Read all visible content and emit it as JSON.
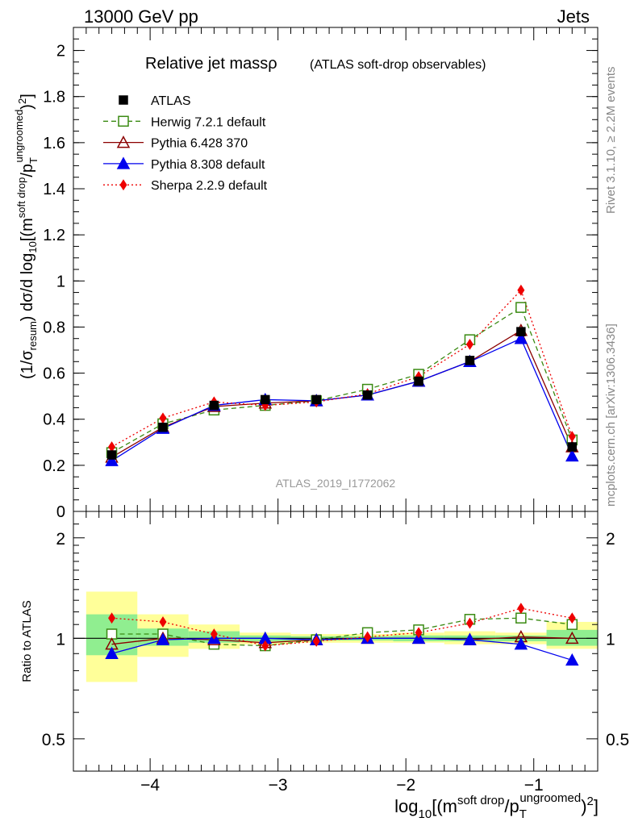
{
  "header": {
    "left": "13000 GeV pp",
    "right": "Jets"
  },
  "side_labels": {
    "top": "Rivet 3.1.10, ≥ 2.2M events",
    "bottom": "mcplots.cern.ch [arXiv:1306.3436]"
  },
  "chart_data": [
    {
      "type": "line",
      "title": "Relative jet massρ",
      "subtitle": "(ATLAS soft-drop observables)",
      "watermark": "ATLAS_2019_I1772062",
      "xlabel": "log₁₀[(m^{soft drop}/p_T^{ungroomed})²]",
      "ylabel": "(1/σ_resum) dσ/d log₁₀[(m^{soft drop}/p_T^{ungroomed})²]",
      "xlim": [
        -4.6,
        -0.5
      ],
      "ylim": [
        0,
        2.1
      ],
      "grid": false,
      "legend_placement": "top-left",
      "x": [
        -4.3,
        -3.9,
        -3.5,
        -3.1,
        -2.7,
        -2.3,
        -1.9,
        -1.5,
        -1.1,
        -0.7
      ],
      "x_edges": [
        -4.5,
        -4.1,
        -3.7,
        -3.3,
        -2.9,
        -2.5,
        -2.1,
        -1.7,
        -1.3,
        -0.9,
        -0.5
      ],
      "series": [
        {
          "name": "ATLAS",
          "key": "atlas",
          "color": "#000000",
          "marker": "filled-square",
          "line": "none",
          "values": [
            0.245,
            0.365,
            0.46,
            0.485,
            0.485,
            0.505,
            0.565,
            0.655,
            0.78,
            0.28
          ]
        },
        {
          "name": "Herwig 7.2.1 default",
          "key": "herwig",
          "color": "#3a8a12",
          "marker": "open-square",
          "line": "dashed",
          "values": [
            0.255,
            0.38,
            0.44,
            0.46,
            0.48,
            0.53,
            0.595,
            0.745,
            0.885,
            0.31
          ]
        },
        {
          "name": "Pythia 6.428 370",
          "key": "py6",
          "color": "#8b0000",
          "marker": "open-triangle",
          "line": "solid",
          "values": [
            0.235,
            0.365,
            0.455,
            0.47,
            0.48,
            0.505,
            0.565,
            0.65,
            0.785,
            0.28
          ]
        },
        {
          "name": "Pythia 8.308 default",
          "key": "py8",
          "color": "#0000ee",
          "marker": "filled-triangle",
          "line": "solid",
          "values": [
            0.22,
            0.36,
            0.46,
            0.485,
            0.48,
            0.505,
            0.565,
            0.65,
            0.75,
            0.24
          ]
        },
        {
          "name": "Sherpa 2.2.9 default",
          "key": "sherpa",
          "color": "#ee0000",
          "marker": "filled-diamond",
          "line": "dotted",
          "values": [
            0.28,
            0.405,
            0.475,
            0.46,
            0.475,
            0.51,
            0.585,
            0.725,
            0.96,
            0.325
          ]
        }
      ],
      "yticks": [
        0,
        0.2,
        0.4,
        0.6,
        0.8,
        1,
        1.2,
        1.4,
        1.6,
        1.8,
        2
      ],
      "ytick_labels": [
        "0",
        "0.2",
        "0.4",
        "0.6",
        "0.8",
        "1",
        "1.2",
        "1.4",
        "1.6",
        "1.8",
        "2"
      ]
    },
    {
      "type": "line",
      "ylabel": "Ratio to ATLAS",
      "yscale": "log",
      "ylim": [
        0.4,
        2.4
      ],
      "x": [
        -4.3,
        -3.9,
        -3.5,
        -3.1,
        -2.7,
        -2.3,
        -1.9,
        -1.5,
        -1.1,
        -0.7
      ],
      "band_yellow": [
        [
          0.74,
          1.38
        ],
        [
          0.88,
          1.18
        ],
        [
          0.93,
          1.1
        ],
        [
          0.96,
          1.04
        ],
        [
          0.97,
          1.03
        ],
        [
          0.97,
          1.03
        ],
        [
          0.97,
          1.04
        ],
        [
          0.96,
          1.05
        ],
        [
          0.96,
          1.04
        ],
        [
          0.93,
          1.12
        ]
      ],
      "band_green": [
        [
          0.89,
          1.18
        ],
        [
          0.95,
          1.07
        ],
        [
          0.97,
          1.05
        ],
        [
          0.98,
          1.02
        ],
        [
          0.985,
          1.015
        ],
        [
          0.985,
          1.015
        ],
        [
          0.98,
          1.02
        ],
        [
          0.98,
          1.02
        ],
        [
          0.98,
          1.02
        ],
        [
          0.95,
          1.06
        ]
      ],
      "series": [
        {
          "name": "Herwig 7.2.1 default",
          "key": "herwig",
          "values": [
            1.03,
            1.03,
            0.96,
            0.95,
            0.99,
            1.04,
            1.06,
            1.14,
            1.15,
            1.1
          ]
        },
        {
          "name": "Pythia 6.428 370",
          "key": "py6",
          "values": [
            0.96,
            1.0,
            0.99,
            0.97,
            0.99,
            1.0,
            1.0,
            0.99,
            1.01,
            1.0
          ]
        },
        {
          "name": "Pythia 8.308 default",
          "key": "py8",
          "values": [
            0.9,
            0.99,
            1.0,
            1.0,
            0.99,
            1.0,
            1.0,
            0.99,
            0.96,
            0.86
          ]
        },
        {
          "name": "Sherpa 2.2.9 default",
          "key": "sherpa",
          "values": [
            1.15,
            1.12,
            1.03,
            0.95,
            0.98,
            1.01,
            1.04,
            1.11,
            1.23,
            1.15
          ]
        }
      ],
      "yticks": [
        0.5,
        1,
        2
      ],
      "ytick_labels": [
        "0.5",
        "1",
        "2"
      ]
    }
  ],
  "xaxis": {
    "ticks": [
      -4,
      -3,
      -2,
      -1
    ],
    "tick_labels": [
      "−4",
      "−3",
      "−2",
      "−1"
    ],
    "minor_step": 0.1
  }
}
